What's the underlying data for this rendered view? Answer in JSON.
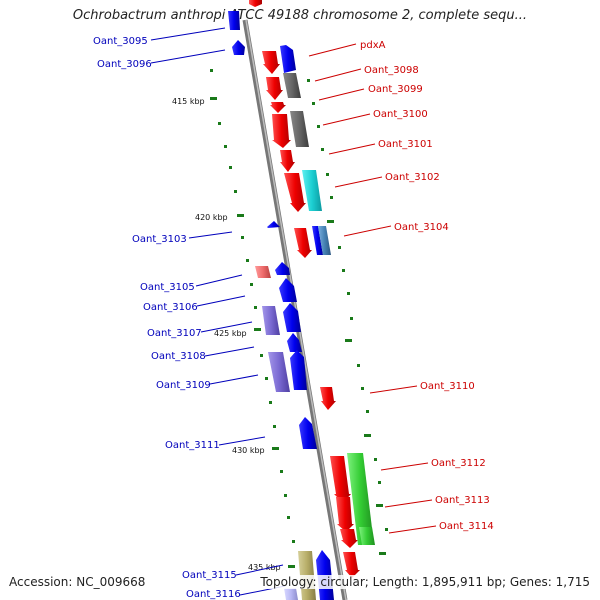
{
  "title": "Ochrobactrum anthropi ATCC 49188 chromosome 2, complete sequ...",
  "footer": {
    "accession": "Accession: NC_009668",
    "summary": "Topology: circular; Length: 1,895,911 bp; Genes: 1,715"
  },
  "colors": {
    "forward_label": "#cc0000",
    "reverse_label": "#0000bb",
    "backbone": "#8c8c8c",
    "tick": "#1a7a1a"
  },
  "kbp_labels": [
    "415 kbp",
    "420 kbp",
    "425 kbp",
    "430 kbp",
    "435 kbp"
  ],
  "genes_forward": [
    "pdxA",
    "Oant_3098",
    "Oant_3099",
    "Oant_3100",
    "Oant_3101",
    "Oant_3102",
    "Oant_3104",
    "Oant_3110",
    "Oant_3112",
    "Oant_3113",
    "Oant_3114"
  ],
  "genes_reverse": [
    "Oant_3095",
    "Oant_3096",
    "Oant_3103",
    "Oant_3105",
    "Oant_3106",
    "Oant_3107",
    "Oant_3108",
    "Oant_3109",
    "Oant_3111",
    "Oant_3115",
    "Oant_3116"
  ]
}
